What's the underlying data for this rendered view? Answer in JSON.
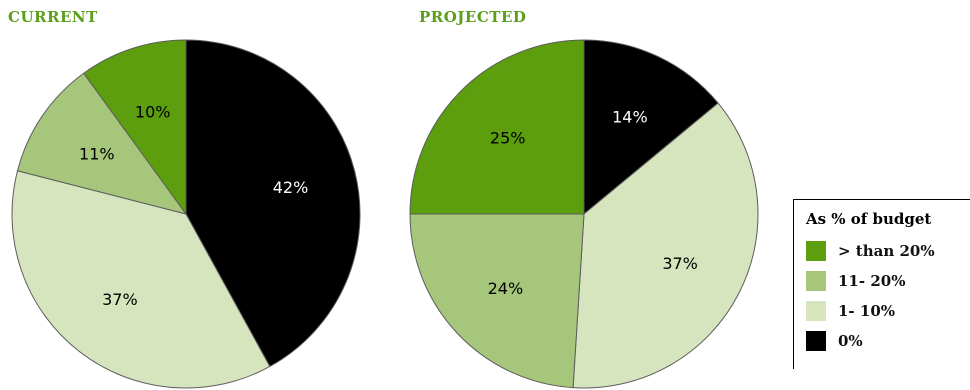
{
  "legend": {
    "title": "As % of budget",
    "items": [
      {
        "label": "> than 20%",
        "color": "#5c9e0e"
      },
      {
        "label": "11- 20%",
        "color": "#a6c67c"
      },
      {
        "label": "1- 10%",
        "color": "#d7e5bf"
      },
      {
        "label": "0%",
        "color": "#000000"
      }
    ]
  },
  "chart_data": [
    {
      "type": "pie",
      "title": "CURRENT",
      "slices": [
        {
          "label": "0%",
          "value": 42,
          "text": "42%",
          "color": "#000000",
          "text_color": "#ffffff"
        },
        {
          "label": "1- 10%",
          "value": 37,
          "text": "37%",
          "color": "#d7e5bf",
          "text_color": "#000000"
        },
        {
          "label": "11- 20%",
          "value": 11,
          "text": "11%",
          "color": "#a6c67c",
          "text_color": "#000000"
        },
        {
          "label": "> than 20%",
          "value": 10,
          "text": "10%",
          "color": "#5c9e0e",
          "text_color": "#000000"
        }
      ]
    },
    {
      "type": "pie",
      "title": "PROJECTED",
      "slices": [
        {
          "label": "0%",
          "value": 14,
          "text": "14%",
          "color": "#000000",
          "text_color": "#ffffff"
        },
        {
          "label": "1- 10%",
          "value": 37,
          "text": "37%",
          "color": "#d7e5bf",
          "text_color": "#000000"
        },
        {
          "label": "11- 20%",
          "value": 24,
          "text": "24%",
          "color": "#a6c67c",
          "text_color": "#000000"
        },
        {
          "label": "> than 20%",
          "value": 25,
          "text": "25%",
          "color": "#5c9e0e",
          "text_color": "#000000"
        }
      ]
    }
  ]
}
